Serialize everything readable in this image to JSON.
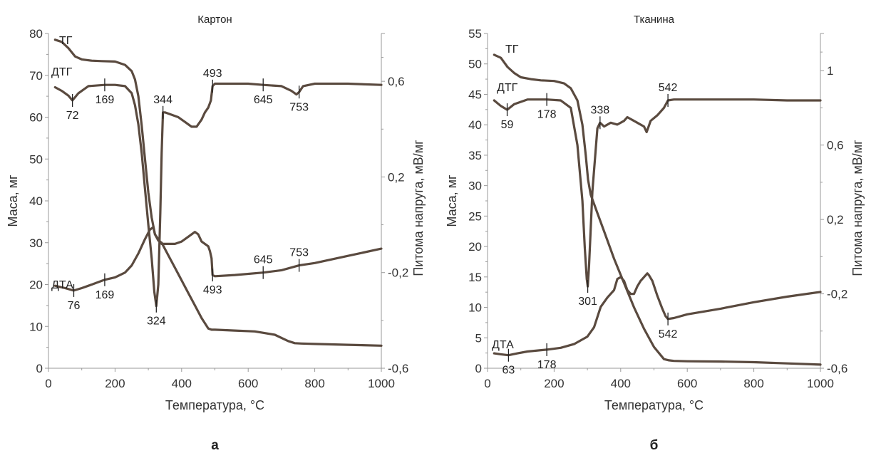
{
  "colors": {
    "curve": "#5a4a3f",
    "axis": "#999999",
    "text": "#333333"
  },
  "chart_data": [
    {
      "type": "line",
      "title": "Картон",
      "panel_letter": "а",
      "xlabel": "Температура, °С",
      "ylabel": "Маса, мг",
      "y2label": "Питома напруга, мВ/мг",
      "xlim": [
        0,
        1000
      ],
      "ylim": [
        0,
        80
      ],
      "y2lim": [
        -0.6,
        0.8
      ],
      "x_ticks": [
        0,
        200,
        400,
        600,
        800,
        1000
      ],
      "y_ticks": [
        0,
        10,
        20,
        30,
        40,
        50,
        60,
        70,
        80
      ],
      "y2_ticks": [
        -0.6,
        -0.2,
        0.2,
        0.6
      ],
      "y2_tick_labels": [
        "-0,6",
        "-0,2",
        "0,2",
        "0,6"
      ],
      "grid": false,
      "series": [
        {
          "name": "ТГ",
          "axis": "left",
          "x": [
            20,
            40,
            60,
            80,
            100,
            130,
            160,
            200,
            230,
            250,
            260,
            270,
            280,
            290,
            300,
            310,
            320,
            330,
            340,
            360,
            380,
            400,
            420,
            440,
            460,
            480,
            490,
            500,
            560,
            620,
            680,
            720,
            740,
            760,
            800,
            900,
            1000
          ],
          "y": [
            78.5,
            78,
            76.5,
            74.5,
            73.8,
            73.5,
            73.4,
            73.3,
            72.5,
            71,
            69,
            65,
            58,
            50,
            42,
            36,
            32,
            30.5,
            30,
            27,
            24,
            21,
            18,
            15,
            12,
            9.5,
            9.2,
            9.2,
            9,
            8.8,
            8,
            6.5,
            6,
            5.9,
            5.8,
            5.6,
            5.4
          ]
        },
        {
          "name": "ДТГ",
          "axis": "right",
          "x": [
            20,
            40,
            60,
            72,
            90,
            120,
            169,
            200,
            230,
            250,
            260,
            270,
            280,
            290,
            300,
            310,
            318,
            324,
            330,
            336,
            340,
            344,
            350,
            370,
            390,
            410,
            430,
            445,
            460,
            470,
            480,
            488,
            493,
            500,
            560,
            600,
            645,
            700,
            730,
            745,
            753,
            765,
            800,
            900,
            1000
          ],
          "y": [
            0.575,
            0.56,
            0.54,
            0.52,
            0.55,
            0.58,
            0.585,
            0.585,
            0.58,
            0.55,
            0.5,
            0.42,
            0.3,
            0.15,
            0.0,
            -0.14,
            -0.28,
            -0.34,
            -0.25,
            0.05,
            0.3,
            0.47,
            0.47,
            0.46,
            0.45,
            0.43,
            0.41,
            0.41,
            0.44,
            0.47,
            0.49,
            0.52,
            0.58,
            0.59,
            0.59,
            0.59,
            0.585,
            0.58,
            0.56,
            0.545,
            0.555,
            0.58,
            0.59,
            0.59,
            0.585
          ]
        },
        {
          "name": "ДТА",
          "axis": "right",
          "x": [
            20,
            50,
            76,
            100,
            130,
            169,
            200,
            230,
            250,
            270,
            290,
            305,
            315,
            320,
            330,
            340,
            360,
            380,
            400,
            420,
            440,
            450,
            460,
            470,
            480,
            485,
            490,
            493,
            500,
            560,
            645,
            700,
            753,
            800,
            900,
            1000
          ],
          "y": [
            -0.255,
            -0.265,
            -0.275,
            -0.265,
            -0.25,
            -0.23,
            -0.22,
            -0.2,
            -0.17,
            -0.12,
            -0.06,
            -0.02,
            -0.01,
            -0.04,
            -0.06,
            -0.08,
            -0.08,
            -0.08,
            -0.07,
            -0.05,
            -0.03,
            -0.04,
            -0.07,
            -0.08,
            -0.09,
            -0.11,
            -0.14,
            -0.21,
            -0.215,
            -0.21,
            -0.2,
            -0.19,
            -0.17,
            -0.16,
            -0.13,
            -0.1
          ]
        }
      ],
      "annotations": [
        {
          "text": "ТГ",
          "target": "ТГ"
        },
        {
          "text": "ДТГ",
          "target": "ДТГ"
        },
        {
          "text": "ДТА",
          "target": "ДТА"
        },
        {
          "text": "72",
          "x": 72,
          "series": "ДТГ",
          "pos": "below"
        },
        {
          "text": "169",
          "x": 169,
          "series": "ДТГ",
          "pos": "below"
        },
        {
          "text": "344",
          "x": 344,
          "series": "ДТГ",
          "pos": "above"
        },
        {
          "text": "324",
          "x": 324,
          "series": "ДТГ",
          "pos": "below"
        },
        {
          "text": "493",
          "x": 493,
          "series": "ДТГ",
          "pos": "above"
        },
        {
          "text": "645",
          "x": 645,
          "series": "ДТГ",
          "pos": "below"
        },
        {
          "text": "753",
          "x": 753,
          "series": "ДТГ",
          "pos": "below"
        },
        {
          "text": "76",
          "x": 76,
          "series": "ДТА",
          "pos": "below"
        },
        {
          "text": "169",
          "x": 169,
          "series": "ДТА",
          "pos": "below"
        },
        {
          "text": "493",
          "x": 493,
          "series": "ДТА",
          "pos": "below"
        },
        {
          "text": "645",
          "x": 645,
          "series": "ДТА",
          "pos": "above"
        },
        {
          "text": "753",
          "x": 753,
          "series": "ДТА",
          "pos": "above"
        }
      ]
    },
    {
      "type": "line",
      "title": "Тканина",
      "panel_letter": "б",
      "xlabel": "Температура, °С",
      "ylabel": "Маса, мг",
      "y2label": "Питома напруга, мВ/мг",
      "xlim": [
        0,
        1000
      ],
      "ylim": [
        0,
        55
      ],
      "y2lim": [
        -0.6,
        1.2
      ],
      "x_ticks": [
        0,
        200,
        400,
        600,
        800,
        1000
      ],
      "y_ticks": [
        0,
        5,
        10,
        15,
        20,
        25,
        30,
        35,
        40,
        45,
        50,
        55
      ],
      "y2_ticks": [
        -0.6,
        -0.2,
        0.2,
        0.6,
        1.0
      ],
      "y2_tick_labels": [
        "-0,6",
        "-0,2",
        "0,2",
        "0,6",
        "1"
      ],
      "grid": false,
      "series": [
        {
          "name": "ТГ",
          "axis": "left",
          "x": [
            20,
            40,
            60,
            80,
            100,
            130,
            160,
            200,
            230,
            250,
            270,
            285,
            295,
            302,
            310,
            330,
            350,
            380,
            410,
            440,
            470,
            500,
            530,
            545,
            560,
            600,
            700,
            800,
            900,
            1000
          ],
          "y": [
            51.5,
            51,
            49.5,
            48.5,
            47.8,
            47.5,
            47.3,
            47.2,
            46.8,
            46,
            44,
            40,
            35,
            31,
            28.5,
            25.5,
            22.5,
            18,
            14,
            10,
            6.5,
            3.5,
            1.5,
            1.3,
            1.2,
            1.15,
            1.1,
            1.0,
            0.8,
            0.6
          ]
        },
        {
          "name": "ДТГ",
          "axis": "right",
          "x": [
            20,
            40,
            59,
            80,
            120,
            178,
            220,
            250,
            270,
            285,
            292,
            298,
            301,
            305,
            315,
            330,
            338,
            350,
            370,
            390,
            410,
            420,
            430,
            450,
            470,
            478,
            490,
            510,
            530,
            542,
            560,
            600,
            700,
            800,
            900,
            1000
          ],
          "y": [
            0.84,
            0.81,
            0.79,
            0.82,
            0.845,
            0.845,
            0.84,
            0.8,
            0.6,
            0.3,
            0.05,
            -0.12,
            -0.16,
            -0.05,
            0.35,
            0.69,
            0.72,
            0.7,
            0.72,
            0.71,
            0.73,
            0.75,
            0.74,
            0.72,
            0.7,
            0.67,
            0.73,
            0.76,
            0.8,
            0.84,
            0.845,
            0.845,
            0.845,
            0.845,
            0.84,
            0.84
          ]
        },
        {
          "name": "ДТА",
          "axis": "right",
          "x": [
            20,
            40,
            63,
            90,
            120,
            178,
            220,
            260,
            300,
            320,
            340,
            360,
            380,
            390,
            400,
            410,
            420,
            430,
            440,
            450,
            460,
            470,
            480,
            485,
            495,
            510,
            525,
            535,
            542,
            560,
            600,
            700,
            800,
            900,
            1000
          ],
          "y": [
            -0.52,
            -0.525,
            -0.53,
            -0.52,
            -0.51,
            -0.5,
            -0.49,
            -0.47,
            -0.43,
            -0.38,
            -0.27,
            -0.22,
            -0.18,
            -0.12,
            -0.11,
            -0.13,
            -0.18,
            -0.2,
            -0.2,
            -0.16,
            -0.13,
            -0.11,
            -0.09,
            -0.1,
            -0.13,
            -0.21,
            -0.28,
            -0.32,
            -0.335,
            -0.33,
            -0.31,
            -0.28,
            -0.245,
            -0.215,
            -0.19
          ]
        }
      ],
      "annotations": [
        {
          "text": "ТГ",
          "target": "ТГ"
        },
        {
          "text": "ДТГ",
          "target": "ДТГ"
        },
        {
          "text": "ДТА",
          "target": "ДТА"
        },
        {
          "text": "59",
          "x": 59,
          "series": "ДТГ",
          "pos": "below"
        },
        {
          "text": "178",
          "x": 178,
          "series": "ДТГ",
          "pos": "below"
        },
        {
          "text": "338",
          "x": 338,
          "series": "ДТГ",
          "pos": "above"
        },
        {
          "text": "301",
          "x": 301,
          "series": "ДТГ",
          "pos": "below"
        },
        {
          "text": "542",
          "x": 542,
          "series": "ДТГ",
          "pos": "above"
        },
        {
          "text": "63",
          "x": 63,
          "series": "ДТА",
          "pos": "below"
        },
        {
          "text": "178",
          "x": 178,
          "series": "ДТА",
          "pos": "below"
        },
        {
          "text": "542",
          "x": 542,
          "series": "ДТА",
          "pos": "below"
        }
      ]
    }
  ]
}
